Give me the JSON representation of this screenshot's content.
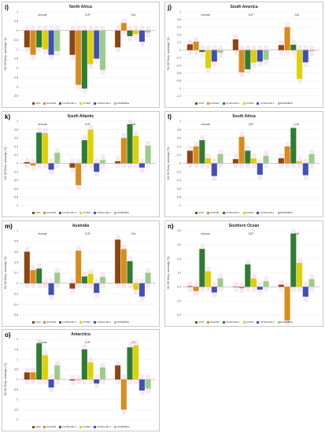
{
  "chart_data": [
    {
      "id": "i",
      "label": "i)",
      "title": "North Africa",
      "type": "bar",
      "groups": [
        "Annual",
        "DJF",
        "JJA"
      ],
      "ylabel": "'03-'05 Temp. anomaly (°C)",
      "ylim": [
        -3.5,
        1.0
      ],
      "yticks": [
        "1",
        "0.5",
        "0",
        "-0.5",
        "-1",
        "-1.5",
        "-2",
        "-2.5",
        "-3",
        "-3.5"
      ],
      "series": [
        {
          "name": "GISS",
          "color": "#8B4513",
          "values": [
            -0.9,
            -1.3,
            -0.9
          ]
        },
        {
          "name": "ECHAM4",
          "color": "#d98c1a",
          "values": [
            -1.3,
            -2.9,
            0.4
          ]
        },
        {
          "name": "LOVECLIM1.1",
          "color": "#2e7d32",
          "values": [
            -0.9,
            -3.1,
            -0.3
          ]
        },
        {
          "name": "CCSM3",
          "color": "#e0d000",
          "values": [
            -1.0,
            -1.8,
            -0.2
          ]
        },
        {
          "name": "LOVECLIM1.2",
          "color": "#3f51b5",
          "values": [
            -1.3,
            -1.5,
            -0.6
          ]
        },
        {
          "name": "ENSEMBLE",
          "color": "#9ccc8a",
          "values": [
            -1.1,
            -2.1,
            -0.1
          ]
        }
      ]
    },
    {
      "id": "j",
      "label": "j)",
      "title": "South America",
      "type": "bar",
      "groups": [
        "Annual",
        "DJF",
        "JJA"
      ],
      "ylabel": "'03-'05 Temp. anomaly (°C)",
      "ylim": [
        -1.2,
        1.0
      ],
      "yticks": [
        "1",
        "0.8",
        "0.6",
        "0.4",
        "0.2",
        "0",
        "-0.2",
        "-0.4",
        "-0.6",
        "-0.8",
        "-1",
        "-1.2"
      ],
      "series": [
        {
          "name": "GISS",
          "color": "#8B4513",
          "values": [
            0.15,
            0.28,
            0.13
          ]
        },
        {
          "name": "ECHAM4",
          "color": "#d98c1a",
          "values": [
            0.22,
            -0.58,
            0.6
          ]
        },
        {
          "name": "LOVECLIM1.1",
          "color": "#2e7d32",
          "values": [
            -0.05,
            -0.5,
            0.14
          ]
        },
        {
          "name": "CCSM3",
          "color": "#e0d000",
          "values": [
            -0.47,
            -0.33,
            -0.75
          ]
        },
        {
          "name": "LOVECLIM1.2",
          "color": "#3f51b5",
          "values": [
            -0.3,
            -0.3,
            -0.32
          ]
        },
        {
          "name": "ENSEMBLE",
          "color": "#9ccc8a",
          "values": [
            -0.07,
            -0.25,
            -0.03
          ]
        }
      ]
    },
    {
      "id": "k",
      "label": "k)",
      "title": "South Atlantic",
      "type": "bar",
      "groups": [
        "Annual",
        "DJF",
        "JJA"
      ],
      "ylabel": "'03-'05 Temp. anomaly (°C)",
      "ylim": [
        -1.0,
        1.0
      ],
      "yticks": [
        "1",
        "0.8",
        "0.6",
        "0.4",
        "0.2",
        "0",
        "-0.2",
        "-0.4",
        "-0.6",
        "-0.8",
        "-1"
      ],
      "series": [
        {
          "name": "GISS",
          "color": "#8B4513",
          "values": [
            0.03,
            -0.1,
            0.05
          ]
        },
        {
          "name": "ECHAM4",
          "color": "#d98c1a",
          "values": [
            -0.05,
            -0.52,
            0.6
          ]
        },
        {
          "name": "LOVECLIM1.1",
          "color": "#2e7d32",
          "values": [
            0.73,
            0.55,
            0.93
          ]
        },
        {
          "name": "CCSM3",
          "color": "#e0d000",
          "values": [
            0.72,
            0.8,
            0.65
          ]
        },
        {
          "name": "LOVECLIM1.2",
          "color": "#3f51b5",
          "values": [
            -0.15,
            -0.2,
            -0.1
          ]
        },
        {
          "name": "ENSEMBLE",
          "color": "#9ccc8a",
          "values": [
            0.25,
            0.08,
            0.42
          ]
        }
      ]
    },
    {
      "id": "l",
      "label": "l)",
      "title": "South Africa",
      "type": "bar",
      "groups": [
        "Annual",
        "DJF",
        "JJA"
      ],
      "ylabel": "'03-'05 Temp. anomaly (°C)",
      "ylim": [
        -1.0,
        1.0
      ],
      "yticks": [
        "1",
        "0.8",
        "0.6",
        "0.4",
        "0.2",
        "0",
        "-0.2",
        "-0.4",
        "-0.6",
        "-0.8",
        "-1"
      ],
      "series": [
        {
          "name": "GISS",
          "color": "#8B4513",
          "values": [
            0.3,
            0.1,
            0.12
          ]
        },
        {
          "name": "ECHAM4",
          "color": "#d98c1a",
          "values": [
            0.4,
            0.63,
            0.4
          ]
        },
        {
          "name": "LOVECLIM1.1",
          "color": "#2e7d32",
          "values": [
            0.55,
            0.3,
            0.84
          ]
        },
        {
          "name": "CCSM3",
          "color": "#e0d000",
          "values": [
            0.12,
            0.12,
            0.05
          ]
        },
        {
          "name": "LOVECLIM1.2",
          "color": "#3f51b5",
          "values": [
            -0.3,
            -0.27,
            -0.28
          ]
        },
        {
          "name": "ENSEMBLE",
          "color": "#9ccc8a",
          "values": [
            0.22,
            0.18,
            0.22
          ]
        }
      ]
    },
    {
      "id": "m",
      "label": "m)",
      "title": "Australia",
      "type": "bar",
      "groups": [
        "Annual",
        "DJF",
        "JJA"
      ],
      "ylabel": "'03-'05 Temp. anomaly (°C)",
      "ylim": [
        -0.6,
        1.0
      ],
      "yticks": [
        "1",
        "0.8",
        "0.6",
        "0.4",
        "0.2",
        "0",
        "-0.2",
        "-0.4",
        "-0.6"
      ],
      "series": [
        {
          "name": "GISS",
          "color": "#8B4513",
          "values": [
            0.6,
            -0.1,
            0.83
          ]
        },
        {
          "name": "ECHAM4",
          "color": "#d98c1a",
          "values": [
            0.25,
            0.62,
            0.65
          ]
        },
        {
          "name": "LOVECLIM1.1",
          "color": "#2e7d32",
          "values": [
            0.28,
            0.13,
            0.42
          ]
        },
        {
          "name": "CCSM3",
          "color": "#e0d000",
          "values": [
            0.0,
            0.18,
            -0.12
          ]
        },
        {
          "name": "LOVECLIM1.2",
          "color": "#3f51b5",
          "values": [
            -0.22,
            -0.18,
            -0.25
          ]
        },
        {
          "name": "ENSEMBLE",
          "color": "#9ccc8a",
          "values": [
            0.2,
            0.12,
            0.2
          ]
        }
      ]
    },
    {
      "id": "n",
      "label": "n)",
      "title": "Southern Ocean",
      "type": "bar",
      "groups": [
        "Annual",
        "DJF",
        "JJA"
      ],
      "ylabel": "'03-'05 Temp. anomaly (°C)",
      "ylim": [
        -2.0,
        4.0
      ],
      "yticks": [
        "4.0",
        "3.0",
        "2.0",
        "1.0",
        "0.0",
        "-1.0",
        "-2.0"
      ],
      "series": [
        {
          "name": "GISS",
          "color": "#8B4513",
          "values": [
            0.05,
            0.02,
            0.15
          ]
        },
        {
          "name": "ECHAM4",
          "color": "#d98c1a",
          "values": [
            -0.3,
            -0.1,
            -2.4
          ]
        },
        {
          "name": "LOVECLIM1.1",
          "color": "#2e7d32",
          "values": [
            2.7,
            1.6,
            3.8
          ]
        },
        {
          "name": "CCSM3",
          "color": "#e0d000",
          "values": [
            1.1,
            0.6,
            1.7
          ]
        },
        {
          "name": "LOVECLIM1.2",
          "color": "#3f51b5",
          "values": [
            -0.4,
            -0.2,
            -0.7
          ]
        },
        {
          "name": "ENSEMBLE",
          "color": "#9ccc8a",
          "values": [
            0.6,
            0.4,
            0.55
          ]
        }
      ]
    },
    {
      "id": "o",
      "label": "o)",
      "title": "Antarctica",
      "type": "bar",
      "groups": [
        "Annual",
        "DJF",
        "JJA"
      ],
      "ylabel": "'03-'05 Temp. anomaly (°C)",
      "ylim": [
        -2.0,
        2.0
      ],
      "yticks": [
        "2",
        "1.5",
        "1",
        "0.5",
        "0",
        "-0.5",
        "-1",
        "-1.5",
        "-2"
      ],
      "series": [
        {
          "name": "GISS",
          "color": "#8B4513",
          "values": [
            0.35,
            -0.05,
            0.7
          ]
        },
        {
          "name": "ECHAM4",
          "color": "#d98c1a",
          "values": [
            0.35,
            0.0,
            -1.5
          ]
        },
        {
          "name": "LOVECLIM1.1",
          "color": "#2e7d32",
          "values": [
            1.8,
            1.5,
            1.6
          ]
        },
        {
          "name": "CCSM3",
          "color": "#e0d000",
          "values": [
            1.2,
            0.85,
            1.7
          ]
        },
        {
          "name": "LOVECLIM1.2",
          "color": "#3f51b5",
          "values": [
            -0.4,
            -0.2,
            -0.55
          ]
        },
        {
          "name": "ENSEMBLE",
          "color": "#9ccc8a",
          "values": [
            0.7,
            0.6,
            -0.45
          ]
        }
      ]
    }
  ]
}
